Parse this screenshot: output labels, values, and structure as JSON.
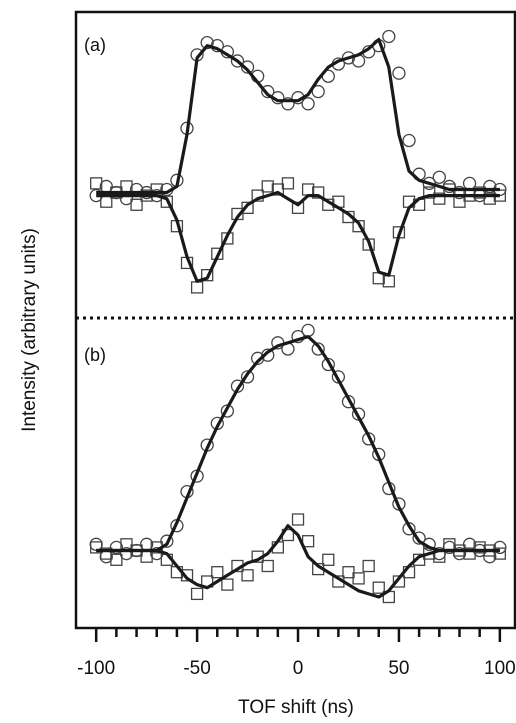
{
  "chart_data": [
    {
      "type": "scatter",
      "panel_label": "(a)",
      "ylabel": "Intensity (arbitrary units)",
      "xlim": [
        -110,
        108
      ],
      "ylim": [
        0,
        100
      ],
      "x": [
        -100,
        -95,
        -90,
        -85,
        -80,
        -75,
        -70,
        -65,
        -60,
        -55,
        -50,
        -45,
        -40,
        -35,
        -30,
        -25,
        -20,
        -15,
        -10,
        -5,
        0,
        5,
        10,
        15,
        20,
        25,
        30,
        35,
        40,
        45,
        50,
        55,
        60,
        65,
        70,
        75,
        80,
        85,
        90,
        95,
        100
      ],
      "series": [
        {
          "marker": "circle",
          "values": [
            40,
            43,
            41,
            39,
            42,
            41,
            40,
            42,
            45,
            62,
            86,
            90,
            89,
            87,
            84,
            82,
            79,
            74,
            72,
            70,
            72,
            70,
            74,
            79,
            83,
            85,
            84,
            87,
            89,
            92,
            80,
            58,
            47,
            44,
            46,
            43,
            41,
            44,
            40,
            43,
            42
          ]
        },
        {
          "marker": "square",
          "values": [
            44,
            38,
            41,
            43,
            37,
            40,
            42,
            38,
            30,
            18,
            10,
            14,
            21,
            26,
            34,
            36,
            40,
            43,
            42,
            44,
            36,
            42,
            41,
            37,
            38,
            33,
            30,
            24,
            13,
            12,
            28,
            38,
            37,
            41,
            39,
            42,
            38,
            40,
            41,
            39,
            40
          ]
        },
        {
          "marker": "line",
          "values": [
            41,
            41,
            41,
            41,
            41,
            41,
            41,
            41,
            43,
            60,
            85,
            89,
            88,
            86,
            84,
            81,
            77,
            73,
            71,
            71,
            71,
            73,
            78,
            82,
            84,
            85,
            86,
            88,
            91,
            82,
            60,
            48,
            45,
            44,
            43,
            42,
            42,
            42,
            42,
            42,
            42
          ]
        },
        {
          "marker": "line",
          "values": [
            40,
            40,
            40,
            40,
            40,
            40,
            40,
            39,
            32,
            20,
            12,
            13,
            20,
            27,
            33,
            37,
            39,
            40,
            41,
            39,
            37,
            40,
            40,
            38,
            36,
            34,
            31,
            25,
            15,
            14,
            27,
            36,
            39,
            40,
            40,
            40,
            40,
            40,
            40,
            40,
            40
          ]
        }
      ]
    },
    {
      "type": "scatter",
      "panel_label": "(b)",
      "xlabel": "TOF shift (ns)",
      "xlim": [
        -110,
        108
      ],
      "ylim": [
        0,
        100
      ],
      "xticks": [
        -100,
        -50,
        0,
        50,
        100
      ],
      "xminorticks": [
        -90,
        -80,
        -70,
        -60,
        -40,
        -30,
        -20,
        -10,
        10,
        20,
        30,
        40,
        60,
        70,
        80,
        90
      ],
      "x": [
        -100,
        -95,
        -90,
        -85,
        -80,
        -75,
        -70,
        -65,
        -60,
        -55,
        -50,
        -45,
        -40,
        -35,
        -30,
        -25,
        -20,
        -15,
        -10,
        -5,
        0,
        5,
        10,
        15,
        20,
        25,
        30,
        35,
        40,
        45,
        50,
        55,
        60,
        65,
        70,
        75,
        80,
        85,
        90,
        95,
        100
      ],
      "series": [
        {
          "marker": "circle",
          "values": [
            27,
            23,
            26,
            24,
            25,
            27,
            24,
            28,
            33,
            44,
            49,
            59,
            66,
            70,
            78,
            81,
            87,
            88,
            92,
            90,
            94,
            96,
            90,
            85,
            81,
            73,
            69,
            61,
            56,
            45,
            40,
            32,
            29,
            27,
            24,
            26,
            24,
            27,
            25,
            23,
            26
          ]
        },
        {
          "marker": "square",
          "values": [
            26,
            24,
            22,
            27,
            25,
            23,
            26,
            22,
            18,
            17,
            11,
            15,
            18,
            14,
            20,
            17,
            23,
            20,
            26,
            30,
            35,
            28,
            19,
            22,
            15,
            18,
            16,
            20,
            13,
            10,
            15,
            18,
            22,
            24,
            23,
            27,
            25,
            24,
            26,
            25,
            24
          ]
        },
        {
          "marker": "line",
          "values": [
            25,
            25,
            25,
            25,
            25,
            25,
            25,
            27,
            34,
            42,
            50,
            58,
            65,
            71,
            77,
            82,
            86,
            89,
            91,
            92,
            93,
            94,
            91,
            86,
            80,
            74,
            68,
            62,
            55,
            47,
            39,
            33,
            28,
            26,
            25,
            25,
            25,
            25,
            25,
            25,
            25
          ]
        },
        {
          "marker": "line",
          "values": [
            25,
            25,
            25,
            25,
            25,
            25,
            25,
            24,
            20,
            16,
            14,
            13,
            15,
            17,
            19,
            21,
            22,
            24,
            28,
            33,
            30,
            23,
            20,
            18,
            16,
            14,
            12,
            11,
            10,
            12,
            16,
            20,
            23,
            24,
            25,
            25,
            25,
            25,
            25,
            25,
            25
          ]
        }
      ]
    }
  ]
}
